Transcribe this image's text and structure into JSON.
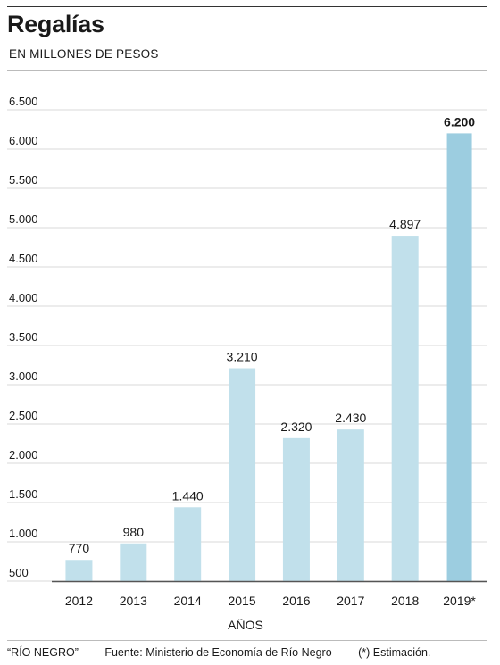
{
  "title": "Regalías",
  "subtitle": "EN MILLONES DE PESOS",
  "footer": {
    "brand": "“RÍO NEGRO”",
    "source": "Fuente: Ministerio de Economía de Río Negro",
    "note": "(*) Estimación."
  },
  "colors": {
    "bar": "#c1e0eb",
    "highlight": "#9ccde0",
    "grid": "#d9d9d9",
    "axis": "#555555",
    "text": "#1a1a1a"
  },
  "chart_data": {
    "type": "bar",
    "title": "Regalías",
    "subtitle": "EN MILLONES DE PESOS",
    "xlabel": "AÑOS",
    "ylabel": "",
    "categories": [
      "2012",
      "2013",
      "2014",
      "2015",
      "2016",
      "2017",
      "2018",
      "2019*"
    ],
    "values": [
      770,
      980,
      1440,
      3210,
      2320,
      2430,
      4897,
      6200
    ],
    "value_labels": [
      "770",
      "980",
      "1.440",
      "3.210",
      "2.320",
      "2.430",
      "4.897",
      "6.200"
    ],
    "highlight_index": 7,
    "ylim": [
      500,
      6500
    ],
    "yticks": [
      500,
      1000,
      1500,
      2000,
      2500,
      3000,
      3500,
      4000,
      4500,
      5000,
      5500,
      6000,
      6500
    ],
    "ytick_labels": [
      "500",
      "1.000",
      "1.500",
      "2.000",
      "2.500",
      "3.000",
      "3.500",
      "4.000",
      "4.500",
      "5.000",
      "5.500",
      "6.000",
      "6.500"
    ],
    "grid": true,
    "legend": "none"
  }
}
